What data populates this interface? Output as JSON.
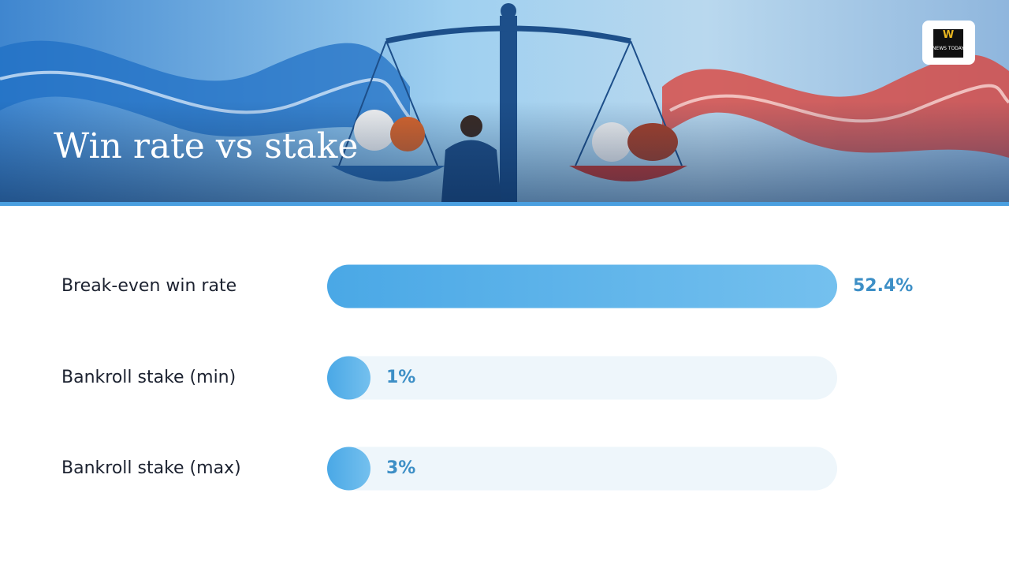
{
  "logo": {
    "mark": "W",
    "text": "NEWS TODAY"
  },
  "chart_data": {
    "type": "bar",
    "orientation": "horizontal",
    "title": "Win rate vs stake",
    "categories": [
      "Break-even win rate",
      "Bankroll stake (min)",
      "Bankroll stake (max)"
    ],
    "values": [
      52.4,
      1,
      3
    ],
    "value_labels": [
      "52.4%",
      "1%",
      "3%"
    ],
    "color": "#4aa8e6"
  }
}
